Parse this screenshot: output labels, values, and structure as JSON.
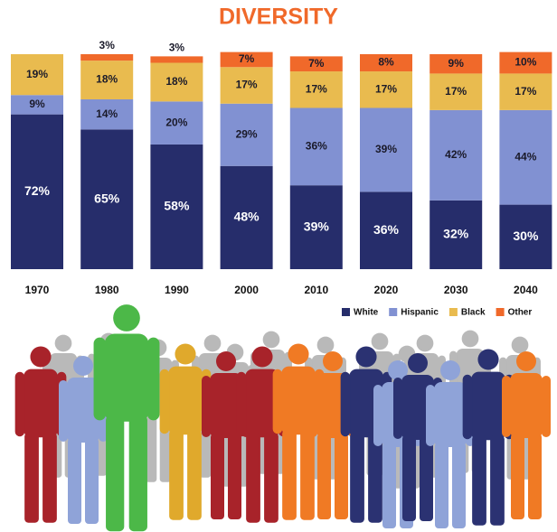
{
  "chart_data": {
    "type": "stacked-bar",
    "title": "DIVERSITY",
    "categories": [
      "1970",
      "1980",
      "1990",
      "2000",
      "2010",
      "2020",
      "2030",
      "2040"
    ],
    "series": [
      {
        "name": "White",
        "color": "#262d6b",
        "values": [
          72,
          65,
          58,
          48,
          39,
          36,
          32,
          30
        ],
        "value_labels": [
          "72%",
          "65%",
          "58%",
          "48%",
          "39%",
          "36%",
          "32%",
          "30%"
        ]
      },
      {
        "name": "Hispanic",
        "color": "#8191d2",
        "values": [
          9,
          14,
          20,
          29,
          36,
          39,
          42,
          44
        ],
        "value_labels": [
          "9%",
          "14%",
          "20%",
          "29%",
          "36%",
          "39%",
          "42%",
          "44%"
        ]
      },
      {
        "name": "Black",
        "color": "#e9bb4f",
        "values": [
          19,
          18,
          18,
          17,
          17,
          17,
          17,
          17
        ],
        "value_labels": [
          "19%",
          "18%",
          "18%",
          "17%",
          "17%",
          "17%",
          "17%",
          "17%"
        ]
      },
      {
        "name": "Other",
        "color": "#f0692a",
        "values": [
          null,
          3,
          3,
          7,
          7,
          8,
          9,
          10
        ],
        "value_labels": [
          null,
          "3%",
          "3%",
          "7%",
          "7%",
          "8%",
          "9%",
          "10%"
        ]
      }
    ],
    "legend": "right"
  }
}
